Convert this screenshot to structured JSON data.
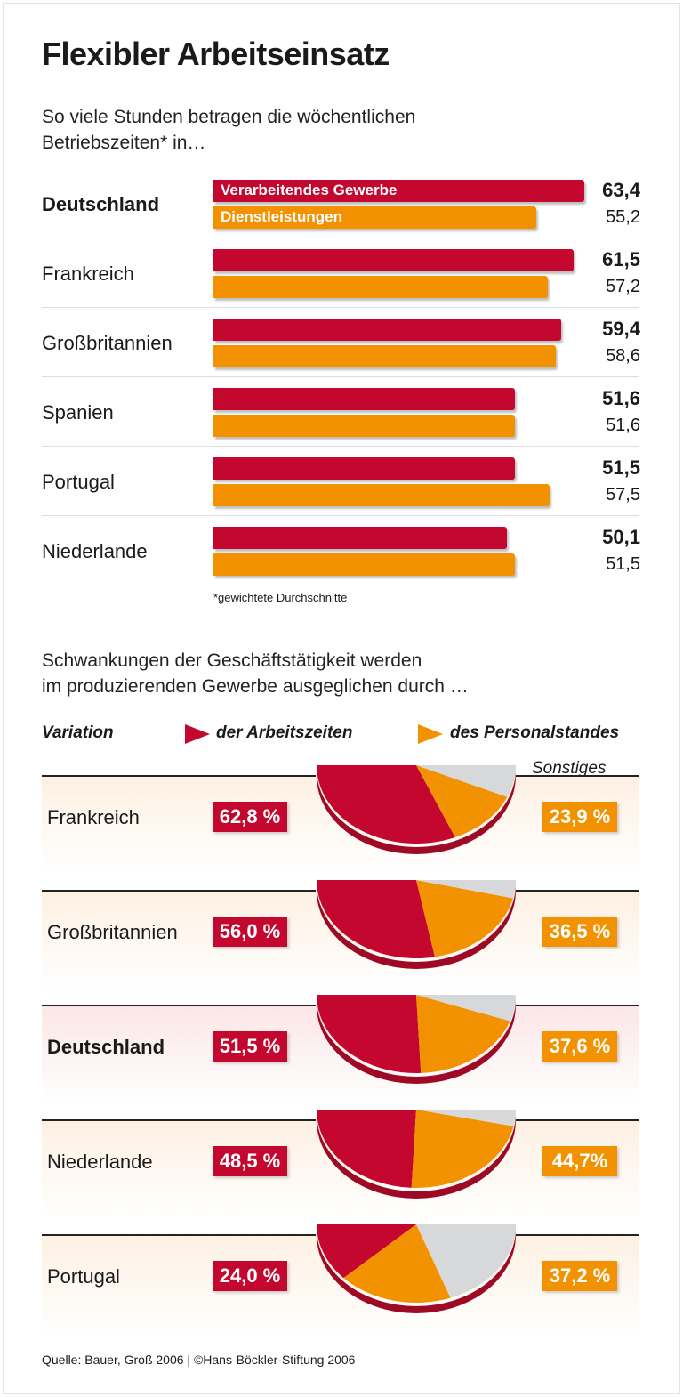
{
  "title": "Flexibler Arbeitseinsatz",
  "subtitle1": [
    "So viele Stunden betragen die wöchentlichen",
    "Betriebszeiten* in…"
  ],
  "colors": {
    "red": "#c4072f",
    "orange": "#f39200",
    "grey": "#d7d8da"
  },
  "chart_data": [
    {
      "type": "bar",
      "orientation": "horizontal",
      "categories": [
        "Deutschland",
        "Frankreich",
        "Großbritannien",
        "Spanien",
        "Portugal",
        "Niederlande"
      ],
      "series": [
        {
          "name": "Verarbeitendes Gewerbe",
          "values": [
            63.4,
            61.5,
            59.4,
            51.6,
            51.5,
            50.1
          ],
          "labels": [
            "63,4",
            "61,5",
            "59,4",
            "51,6",
            "51,5",
            "50,1"
          ]
        },
        {
          "name": "Dienstleistungen",
          "values": [
            55.2,
            57.2,
            58.6,
            51.6,
            57.5,
            51.5
          ],
          "labels": [
            "55,2",
            "57,2",
            "58,6",
            "51,6",
            "57,5",
            "51,5"
          ]
        }
      ],
      "footnote": "*gewichtete Durchschnitte"
    },
    {
      "type": "pie",
      "subtitle": [
        "Schwankungen der Geschäftstätigkeit werden",
        "im produzierenden Gewerbe ausgeglichen durch …"
      ],
      "legend_title": "Variation",
      "legend": [
        "der Arbeitszeiten",
        "des Personalstandes"
      ],
      "other_label": "Sonstiges",
      "categories": [
        "Frankreich",
        "Großbritannien",
        "Deutschland",
        "Niederlande",
        "Portugal"
      ],
      "highlight": "Deutschland",
      "arbeitszeiten": [
        62.8,
        56.0,
        51.5,
        48.5,
        24.0
      ],
      "arbeitszeiten_labels": [
        "62,8 %",
        "56,0 %",
        "51,5 %",
        "48,5 %",
        "24,0 %"
      ],
      "personalstand": [
        23.9,
        36.5,
        37.6,
        44.7,
        37.2
      ],
      "personalstand_labels": [
        "23,9 %",
        "36,5 %",
        "37,6 %",
        "44,7%",
        "37,2 %"
      ]
    }
  ],
  "source": "Quelle: Bauer, Groß 2006 | ©Hans-Böckler-Stiftung 2006"
}
